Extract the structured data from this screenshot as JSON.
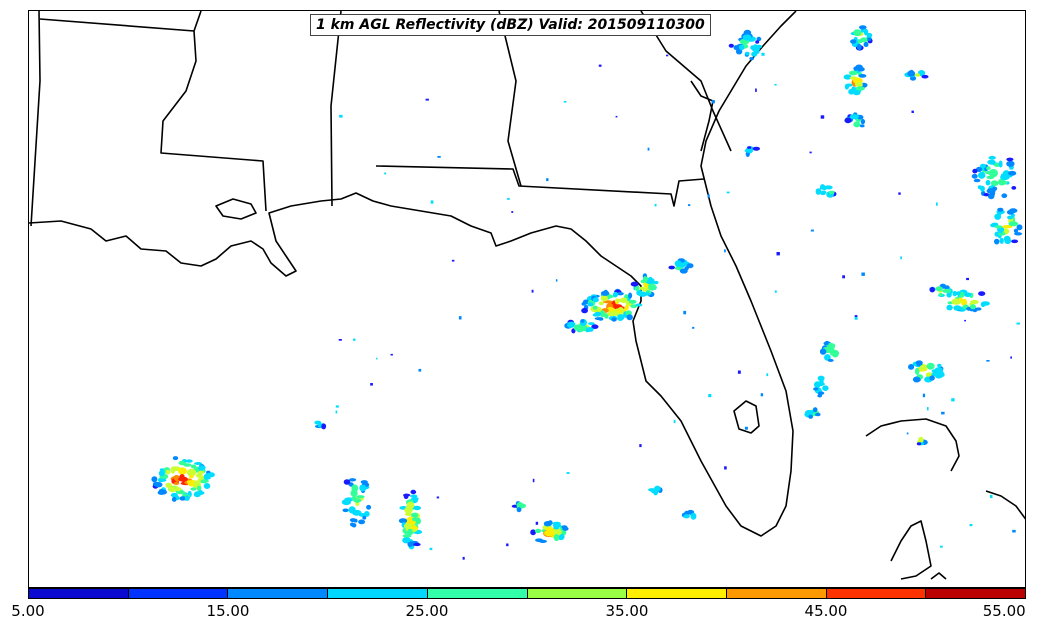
{
  "title": "1 km AGL Reflectivity (dBZ) Valid: 201509110300",
  "colorbar": {
    "tick_labels": [
      "5.00",
      "15.00",
      "25.00",
      "35.00",
      "45.00",
      "55.00"
    ],
    "colors": [
      "#0a0ad0",
      "#0033ff",
      "#0088ff",
      "#00d8ff",
      "#33ffaa",
      "#99ff44",
      "#ffee00",
      "#ff9900",
      "#ff3300",
      "#bb0000"
    ]
  },
  "map": {
    "region": "US Gulf Coast / Southeast / Florida",
    "storm_palette": [
      "#1a1aff",
      "#0088ff",
      "#00ddff",
      "#33ff99",
      "#ccff33",
      "#ffee00",
      "#ff8800",
      "#ff2200"
    ]
  }
}
